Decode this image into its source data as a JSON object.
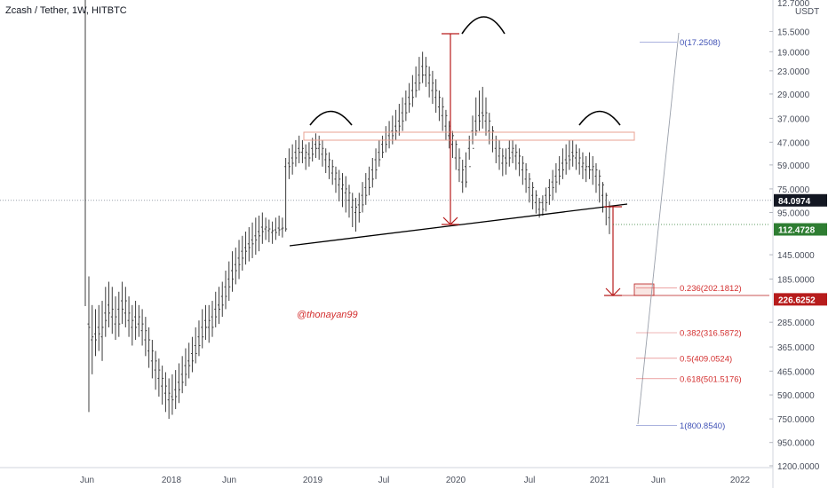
{
  "header": {
    "title": "Zcash / Tether, 1W, HITBTC"
  },
  "watermark": "@thonayan99",
  "chart_data": {
    "type": "candlestick",
    "title": "Zcash / Tether, 1W, HITBTC",
    "y_axis": {
      "scale": "log",
      "inverted": true,
      "unit": "USDT",
      "top_label": "12.7000",
      "ticks": [
        "15.5000",
        "19.0000",
        "23.0000",
        "29.0000",
        "37.0000",
        "47.0000",
        "59.0000",
        "75.0000",
        "95.0000",
        "145.0000",
        "185.0000",
        "226.6252",
        "285.0000",
        "365.0000",
        "465.0000",
        "590.0000",
        "750.0000",
        "950.0000",
        "1200.0000"
      ],
      "tick_values": [
        15.5,
        19,
        23,
        29,
        37,
        47,
        59,
        75,
        95,
        145,
        185,
        226.6252,
        285,
        365,
        465,
        590,
        750,
        950,
        1200
      ],
      "top_value": 12.7
    },
    "x_axis": {
      "ticks": [
        "Jun",
        "2018",
        "Jun",
        "2019",
        "Jul",
        "2020",
        "Jul",
        "2021",
        "Jun",
        "2022"
      ]
    },
    "price_badges": [
      {
        "label": "84.0974",
        "value": 84.0974,
        "color": "#131722"
      },
      {
        "label": "112.4728",
        "value": 112.4728,
        "color": "#2e7d32"
      },
      {
        "label": "226.6252",
        "value": 226.6252,
        "color": "#b71c1c"
      }
    ],
    "fibonacci": {
      "color_top": "#3f51b5",
      "color_mid": "#d32f2f",
      "levels": [
        {
          "label": "0(17.2508)",
          "value": 17.2508
        },
        {
          "label": "0.236(202.1812)",
          "value": 202.1812
        },
        {
          "label": "0.382(316.5872)",
          "value": 316.5872
        },
        {
          "label": "0.5(409.0524)",
          "value": 409.0524
        },
        {
          "label": "0.618(501.5176)",
          "value": 501.5176
        },
        {
          "label": "1(800.8540)",
          "value": 800.854
        }
      ]
    },
    "annotations": {
      "pattern": "inverse head and shoulders",
      "neckline_color": "#000000",
      "measure_color": "#b71c1c",
      "zone_color": "#e8a090"
    },
    "series": [
      {
        "values": [
          [
            290,
            300,
            180,
            700
          ],
          [
            340,
            330,
            240,
            480
          ],
          [
            320,
            340,
            250,
            400
          ],
          [
            300,
            320,
            240,
            380
          ],
          [
            330,
            300,
            230,
            420
          ],
          [
            260,
            280,
            200,
            330
          ],
          [
            240,
            260,
            190,
            300
          ],
          [
            270,
            250,
            200,
            320
          ],
          [
            290,
            270,
            220,
            340
          ],
          [
            250,
            290,
            210,
            330
          ],
          [
            230,
            250,
            190,
            290
          ],
          [
            260,
            230,
            200,
            300
          ],
          [
            280,
            260,
            220,
            330
          ],
          [
            300,
            280,
            240,
            360
          ],
          [
            270,
            300,
            230,
            340
          ],
          [
            290,
            270,
            240,
            330
          ],
          [
            310,
            290,
            250,
            360
          ],
          [
            340,
            310,
            270,
            400
          ],
          [
            380,
            340,
            300,
            450
          ],
          [
            420,
            380,
            340,
            500
          ],
          [
            460,
            420,
            380,
            560
          ],
          [
            500,
            460,
            410,
            600
          ],
          [
            540,
            500,
            440,
            650
          ],
          [
            580,
            540,
            470,
            700
          ],
          [
            620,
            580,
            500,
            750
          ],
          [
            600,
            620,
            480,
            720
          ],
          [
            560,
            600,
            460,
            680
          ],
          [
            520,
            560,
            430,
            640
          ],
          [
            480,
            520,
            400,
            580
          ],
          [
            440,
            480,
            370,
            540
          ],
          [
            420,
            440,
            350,
            500
          ],
          [
            390,
            420,
            330,
            470
          ],
          [
            360,
            390,
            300,
            430
          ],
          [
            330,
            360,
            280,
            400
          ],
          [
            300,
            330,
            250,
            370
          ],
          [
            280,
            300,
            240,
            340
          ],
          [
            300,
            280,
            240,
            350
          ],
          [
            270,
            300,
            230,
            330
          ],
          [
            250,
            270,
            210,
            300
          ],
          [
            240,
            250,
            200,
            290
          ],
          [
            220,
            240,
            190,
            270
          ],
          [
            200,
            220,
            170,
            250
          ],
          [
            185,
            200,
            155,
            230
          ],
          [
            170,
            185,
            140,
            210
          ],
          [
            160,
            170,
            135,
            195
          ],
          [
            150,
            160,
            125,
            185
          ],
          [
            140,
            150,
            120,
            170
          ],
          [
            135,
            140,
            115,
            160
          ],
          [
            130,
            135,
            110,
            155
          ],
          [
            125,
            130,
            105,
            150
          ],
          [
            120,
            125,
            100,
            145
          ],
          [
            115,
            120,
            98,
            140
          ],
          [
            110,
            115,
            95,
            130
          ],
          [
            112,
            110,
            100,
            125
          ],
          [
            114,
            112,
            102,
            128
          ],
          [
            116,
            114,
            104,
            130
          ],
          [
            113,
            116,
            100,
            125
          ],
          [
            111,
            113,
            98,
            120
          ],
          [
            112,
            111,
            100,
            122
          ],
          [
            60,
            112,
            55,
            115
          ],
          [
            58,
            60,
            50,
            68
          ],
          [
            55,
            58,
            48,
            65
          ],
          [
            52,
            55,
            46,
            60
          ],
          [
            50,
            52,
            44,
            58
          ],
          [
            52,
            50,
            46,
            58
          ],
          [
            55,
            52,
            48,
            62
          ],
          [
            53,
            55,
            47,
            60
          ],
          [
            50,
            53,
            45,
            57
          ],
          [
            48,
            50,
            43,
            55
          ],
          [
            50,
            48,
            44,
            56
          ],
          [
            53,
            50,
            46,
            60
          ],
          [
            56,
            53,
            50,
            64
          ],
          [
            60,
            56,
            52,
            68
          ],
          [
            64,
            60,
            56,
            72
          ],
          [
            68,
            64,
            60,
            78
          ],
          [
            72,
            68,
            62,
            85
          ],
          [
            75,
            72,
            64,
            90
          ],
          [
            78,
            75,
            66,
            95
          ],
          [
            84,
            78,
            72,
            100
          ],
          [
            90,
            84,
            78,
            110
          ],
          [
            95,
            90,
            82,
            115
          ],
          [
            88,
            95,
            78,
            105
          ],
          [
            80,
            88,
            70,
            95
          ],
          [
            74,
            80,
            64,
            88
          ],
          [
            68,
            74,
            60,
            80
          ],
          [
            62,
            68,
            55,
            74
          ],
          [
            56,
            62,
            50,
            68
          ],
          [
            52,
            56,
            46,
            60
          ],
          [
            48,
            52,
            44,
            55
          ],
          [
            46,
            48,
            40,
            52
          ],
          [
            44,
            46,
            38,
            50
          ],
          [
            42,
            44,
            36,
            48
          ],
          [
            40,
            42,
            34,
            46
          ],
          [
            38,
            40,
            32,
            44
          ],
          [
            35,
            38,
            30,
            42
          ],
          [
            32,
            35,
            28,
            38
          ],
          [
            30,
            32,
            26,
            35
          ],
          [
            28,
            30,
            24,
            33
          ],
          [
            26,
            28,
            22,
            30
          ],
          [
            24,
            26,
            20,
            28
          ],
          [
            22,
            24,
            19,
            26
          ],
          [
            24,
            22,
            20,
            27
          ],
          [
            26,
            24,
            22,
            30
          ],
          [
            28,
            26,
            23,
            32
          ],
          [
            30,
            28,
            25,
            35
          ],
          [
            33,
            30,
            28,
            38
          ],
          [
            36,
            33,
            30,
            42
          ],
          [
            40,
            36,
            34,
            46
          ],
          [
            44,
            40,
            38,
            50
          ],
          [
            48,
            44,
            42,
            55
          ],
          [
            55,
            48,
            46,
            62
          ],
          [
            62,
            55,
            50,
            70
          ],
          [
            70,
            62,
            56,
            78
          ],
          [
            60,
            70,
            52,
            74
          ],
          [
            50,
            60,
            44,
            56
          ],
          [
            42,
            50,
            36,
            48
          ],
          [
            38,
            42,
            30,
            44
          ],
          [
            36,
            38,
            28,
            42
          ],
          [
            35,
            36,
            27,
            41
          ],
          [
            38,
            35,
            30,
            44
          ],
          [
            42,
            38,
            35,
            48
          ],
          [
            46,
            42,
            40,
            52
          ],
          [
            50,
            46,
            44,
            58
          ],
          [
            54,
            50,
            46,
            62
          ],
          [
            58,
            54,
            50,
            66
          ],
          [
            55,
            58,
            50,
            65
          ],
          [
            50,
            55,
            46,
            60
          ],
          [
            52,
            50,
            46,
            58
          ],
          [
            54,
            52,
            48,
            62
          ],
          [
            58,
            54,
            50,
            66
          ],
          [
            62,
            58,
            54,
            72
          ],
          [
            68,
            62,
            58,
            78
          ],
          [
            74,
            68,
            64,
            86
          ],
          [
            80,
            74,
            70,
            92
          ],
          [
            86,
            80,
            76,
            96
          ],
          [
            92,
            86,
            82,
            100
          ],
          [
            86,
            92,
            80,
            98
          ],
          [
            80,
            86,
            74,
            94
          ],
          [
            74,
            80,
            68,
            88
          ],
          [
            70,
            74,
            62,
            84
          ],
          [
            66,
            70,
            58,
            78
          ],
          [
            62,
            66,
            54,
            72
          ],
          [
            58,
            62,
            50,
            68
          ],
          [
            56,
            58,
            48,
            65
          ],
          [
            54,
            56,
            46,
            62
          ],
          [
            52,
            54,
            46,
            60
          ],
          [
            55,
            52,
            48,
            62
          ],
          [
            58,
            55,
            50,
            65
          ],
          [
            60,
            58,
            52,
            68
          ],
          [
            62,
            60,
            54,
            70
          ],
          [
            60,
            62,
            52,
            68
          ],
          [
            62,
            60,
            54,
            72
          ],
          [
            66,
            62,
            58,
            78
          ],
          [
            72,
            66,
            62,
            86
          ],
          [
            80,
            72,
            70,
            95
          ],
          [
            90,
            80,
            78,
            108
          ],
          [
            100,
            90,
            85,
            118
          ]
        ]
      }
    ]
  }
}
